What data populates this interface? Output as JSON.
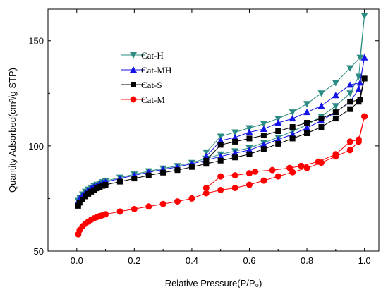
{
  "chart_data": {
    "type": "line",
    "xlabel": "Relative Pressure(P/P₀)",
    "ylabel": "Quantity Adsorbed(cm³/g STP)",
    "xlim": [
      -0.1,
      1.05
    ],
    "ylim": [
      50,
      165
    ],
    "xticks": [
      0.0,
      0.2,
      0.4,
      0.6,
      0.8,
      1.0
    ],
    "xtick_labels": [
      "0.0",
      "0.2",
      "0.4",
      "0.6",
      "0.8",
      "1.0"
    ],
    "yticks": [
      50,
      100,
      150
    ],
    "ytick_labels": [
      "50",
      "100",
      "150"
    ],
    "legend_position": "top-left",
    "grid": false,
    "series": [
      {
        "name": "Cat-H",
        "color": "#2a8c82",
        "marker": "triangle-down",
        "adsorption": [
          [
            0.005,
            74
          ],
          [
            0.01,
            75.5
          ],
          [
            0.02,
            77
          ],
          [
            0.03,
            78.3
          ],
          [
            0.04,
            79.3
          ],
          [
            0.05,
            80.2
          ],
          [
            0.06,
            81
          ],
          [
            0.07,
            81.6
          ],
          [
            0.08,
            82.2
          ],
          [
            0.09,
            82.8
          ],
          [
            0.1,
            83.3
          ],
          [
            0.15,
            85
          ],
          [
            0.2,
            86.5
          ],
          [
            0.25,
            88
          ],
          [
            0.3,
            89.3
          ],
          [
            0.35,
            90.5
          ],
          [
            0.4,
            92
          ],
          [
            0.45,
            94
          ],
          [
            0.5,
            96
          ],
          [
            0.55,
            97.5
          ],
          [
            0.6,
            99
          ],
          [
            0.65,
            101.5
          ],
          [
            0.7,
            104
          ],
          [
            0.75,
            107
          ],
          [
            0.8,
            110
          ],
          [
            0.85,
            114
          ],
          [
            0.9,
            119
          ],
          [
            0.95,
            125
          ],
          [
            0.98,
            133
          ],
          [
            1.0,
            162
          ]
        ],
        "desorption": [
          [
            1.0,
            162
          ],
          [
            0.985,
            142
          ],
          [
            0.95,
            137
          ],
          [
            0.9,
            130
          ],
          [
            0.85,
            125
          ],
          [
            0.8,
            120
          ],
          [
            0.75,
            116
          ],
          [
            0.7,
            113
          ],
          [
            0.65,
            110.5
          ],
          [
            0.6,
            108.5
          ],
          [
            0.55,
            106.5
          ],
          [
            0.5,
            104.5
          ],
          [
            0.45,
            97
          ]
        ]
      },
      {
        "name": "Cat-MH",
        "color": "#1414e6",
        "marker": "triangle-up",
        "adsorption": [
          [
            0.005,
            73.5
          ],
          [
            0.01,
            75
          ],
          [
            0.02,
            76.5
          ],
          [
            0.03,
            77.8
          ],
          [
            0.04,
            78.8
          ],
          [
            0.05,
            79.7
          ],
          [
            0.06,
            80.5
          ],
          [
            0.07,
            81.2
          ],
          [
            0.08,
            81.8
          ],
          [
            0.09,
            82.3
          ],
          [
            0.1,
            82.8
          ],
          [
            0.15,
            84.5
          ],
          [
            0.2,
            86
          ],
          [
            0.25,
            87.5
          ],
          [
            0.3,
            88.8
          ],
          [
            0.35,
            90
          ],
          [
            0.4,
            91.5
          ],
          [
            0.45,
            93.2
          ],
          [
            0.5,
            95
          ],
          [
            0.55,
            96.5
          ],
          [
            0.6,
            98
          ],
          [
            0.65,
            100.5
          ],
          [
            0.7,
            103
          ],
          [
            0.75,
            105.5
          ],
          [
            0.8,
            108.5
          ],
          [
            0.85,
            112
          ],
          [
            0.9,
            116
          ],
          [
            0.95,
            121
          ],
          [
            0.98,
            127
          ],
          [
            1.0,
            142
          ]
        ],
        "desorption": [
          [
            1.0,
            142
          ],
          [
            0.985,
            130
          ],
          [
            0.95,
            129
          ],
          [
            0.9,
            124
          ],
          [
            0.85,
            119
          ],
          [
            0.8,
            116
          ],
          [
            0.75,
            113
          ],
          [
            0.7,
            111
          ],
          [
            0.65,
            108
          ],
          [
            0.6,
            106.5
          ],
          [
            0.55,
            104
          ],
          [
            0.5,
            102.5
          ],
          [
            0.45,
            95
          ]
        ]
      },
      {
        "name": "Cat-S",
        "color": "#000000",
        "marker": "square",
        "adsorption": [
          [
            0.005,
            71.5
          ],
          [
            0.01,
            73
          ],
          [
            0.02,
            74.5
          ],
          [
            0.03,
            76
          ],
          [
            0.04,
            77.2
          ],
          [
            0.05,
            78.2
          ],
          [
            0.06,
            79
          ],
          [
            0.07,
            79.8
          ],
          [
            0.08,
            80.5
          ],
          [
            0.09,
            81
          ],
          [
            0.1,
            81.5
          ],
          [
            0.15,
            83
          ],
          [
            0.2,
            84.5
          ],
          [
            0.25,
            86
          ],
          [
            0.3,
            87.3
          ],
          [
            0.35,
            88.5
          ],
          [
            0.4,
            90
          ],
          [
            0.45,
            91.5
          ],
          [
            0.5,
            93
          ],
          [
            0.55,
            94.5
          ],
          [
            0.6,
            96
          ],
          [
            0.65,
            98.5
          ],
          [
            0.7,
            101
          ],
          [
            0.75,
            103.5
          ],
          [
            0.8,
            106
          ],
          [
            0.85,
            109
          ],
          [
            0.9,
            113
          ],
          [
            0.95,
            117.5
          ],
          [
            0.98,
            121
          ],
          [
            1.0,
            132
          ]
        ],
        "desorption": [
          [
            1.0,
            132
          ],
          [
            0.985,
            122
          ],
          [
            0.95,
            121
          ],
          [
            0.9,
            116
          ],
          [
            0.85,
            113
          ],
          [
            0.8,
            111
          ],
          [
            0.75,
            109
          ],
          [
            0.7,
            107
          ],
          [
            0.65,
            105
          ],
          [
            0.6,
            103.5
          ],
          [
            0.55,
            102
          ],
          [
            0.5,
            100.5
          ],
          [
            0.45,
            93
          ]
        ]
      },
      {
        "name": "Cat-M",
        "color": "#ff0000",
        "marker": "circle",
        "adsorption": [
          [
            0.005,
            58
          ],
          [
            0.01,
            60
          ],
          [
            0.02,
            61.8
          ],
          [
            0.03,
            63
          ],
          [
            0.04,
            64
          ],
          [
            0.05,
            64.9
          ],
          [
            0.06,
            65.6
          ],
          [
            0.07,
            66.2
          ],
          [
            0.08,
            66.7
          ],
          [
            0.09,
            67.1
          ],
          [
            0.1,
            67.5
          ],
          [
            0.15,
            68.8
          ],
          [
            0.2,
            70
          ],
          [
            0.25,
            71.2
          ],
          [
            0.3,
            72.4
          ],
          [
            0.35,
            73.6
          ],
          [
            0.4,
            75
          ],
          [
            0.45,
            77.5
          ],
          [
            0.5,
            79
          ],
          [
            0.55,
            80
          ],
          [
            0.6,
            81.5
          ],
          [
            0.65,
            83.5
          ],
          [
            0.7,
            85.5
          ],
          [
            0.75,
            87.5
          ],
          [
            0.8,
            89.5
          ],
          [
            0.85,
            92
          ],
          [
            0.9,
            95
          ],
          [
            0.95,
            98
          ],
          [
            0.98,
            102
          ],
          [
            1.0,
            114
          ]
        ],
        "desorption": [
          [
            1.0,
            114
          ],
          [
            0.98,
            103
          ],
          [
            0.95,
            102
          ],
          [
            0.9,
            96
          ],
          [
            0.84,
            92.5
          ],
          [
            0.78,
            90.5
          ],
          [
            0.74,
            89.5
          ],
          [
            0.68,
            88.5
          ],
          [
            0.62,
            87.8
          ],
          [
            0.6,
            87
          ],
          [
            0.55,
            86
          ],
          [
            0.5,
            85.5
          ],
          [
            0.45,
            80
          ]
        ]
      }
    ]
  }
}
